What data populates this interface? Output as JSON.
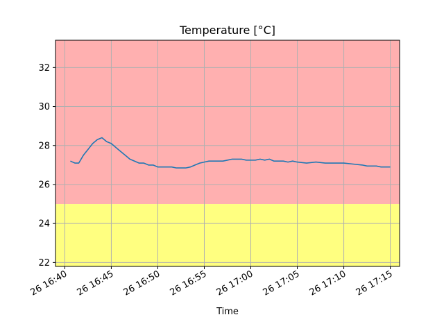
{
  "chart_data": {
    "type": "line",
    "title": "Temperature [°C]",
    "xlabel": "Time",
    "ylabel": "",
    "grid": true,
    "colors": {
      "line": "#1f77b4",
      "upper_band": "#ffb0b0",
      "lower_band": "#ffff80",
      "grid": "#b0b0b0"
    },
    "bands": [
      {
        "y_from": 25,
        "y_to": 33.4,
        "color": "#ffb0b0"
      },
      {
        "y_from": 21.8,
        "y_to": 25,
        "color": "#ffff80"
      }
    ],
    "xlim": [
      "26 16:39",
      "26 17:16"
    ],
    "ylim": [
      21.8,
      33.4
    ],
    "x_ticks": [
      {
        "t": "26 16:40",
        "label": "26 16:40"
      },
      {
        "t": "26 16:45",
        "label": "26 16:45"
      },
      {
        "t": "26 16:50",
        "label": "26 16:50"
      },
      {
        "t": "26 16:55",
        "label": "26 16:55"
      },
      {
        "t": "26 17:00",
        "label": "26 17:00"
      },
      {
        "t": "26 17:05",
        "label": "26 17:05"
      },
      {
        "t": "26 17:10",
        "label": "26 17:10"
      },
      {
        "t": "26 17:15",
        "label": "26 17:15"
      }
    ],
    "y_ticks": [
      22,
      24,
      26,
      28,
      30,
      32
    ],
    "series": [
      {
        "x": [
          "26 16:40.6",
          "26 16:41.1",
          "26 16:41.5",
          "26 16:42.0",
          "26 16:42.5",
          "26 16:43.0",
          "26 16:43.5",
          "26 16:44.0",
          "26 16:44.5",
          "26 16:45.0",
          "26 16:45.5",
          "26 16:46.0",
          "26 16:46.5",
          "26 16:47.0",
          "26 16:47.5",
          "26 16:48.0",
          "26 16:48.5",
          "26 16:49.0",
          "26 16:49.5",
          "26 16:50.0",
          "26 16:50.5",
          "26 16:51.0",
          "26 16:51.5",
          "26 16:52.0",
          "26 16:52.5",
          "26 16:53.0",
          "26 16:53.5",
          "26 16:54.0",
          "26 16:54.5",
          "26 16:55.0",
          "26 16:55.5",
          "26 16:56.0",
          "26 16:56.5",
          "26 16:57.0",
          "26 16:57.5",
          "26 16:58.0",
          "26 16:58.5",
          "26 16:59.0",
          "26 16:59.5",
          "26 17:00.0",
          "26 17:00.5",
          "26 17:01.0",
          "26 17:01.5",
          "26 17:02.0",
          "26 17:02.5",
          "26 17:03.0",
          "26 17:03.5",
          "26 17:04.0",
          "26 17:04.5",
          "26 17:05.0",
          "26 17:06.0",
          "26 17:07.0",
          "26 17:08.0",
          "26 17:09.0",
          "26 17:10.0",
          "26 17:11.0",
          "26 17:12.0",
          "26 17:12.5",
          "26 17:13.0",
          "26 17:13.5",
          "26 17:14.0",
          "26 17:14.5",
          "26 17:15.0"
        ],
        "y": [
          27.2,
          27.1,
          27.1,
          27.5,
          27.8,
          28.1,
          28.3,
          28.4,
          28.2,
          28.1,
          27.9,
          27.7,
          27.5,
          27.3,
          27.2,
          27.1,
          27.1,
          27.0,
          27.0,
          26.9,
          26.9,
          26.9,
          26.9,
          26.85,
          26.85,
          26.85,
          26.9,
          27.0,
          27.1,
          27.15,
          27.2,
          27.2,
          27.2,
          27.2,
          27.25,
          27.3,
          27.3,
          27.3,
          27.25,
          27.25,
          27.25,
          27.3,
          27.25,
          27.3,
          27.2,
          27.2,
          27.2,
          27.15,
          27.2,
          27.15,
          27.1,
          27.15,
          27.1,
          27.1,
          27.1,
          27.05,
          27.0,
          26.95,
          26.95,
          26.95,
          26.9,
          26.9,
          26.9
        ]
      }
    ]
  }
}
